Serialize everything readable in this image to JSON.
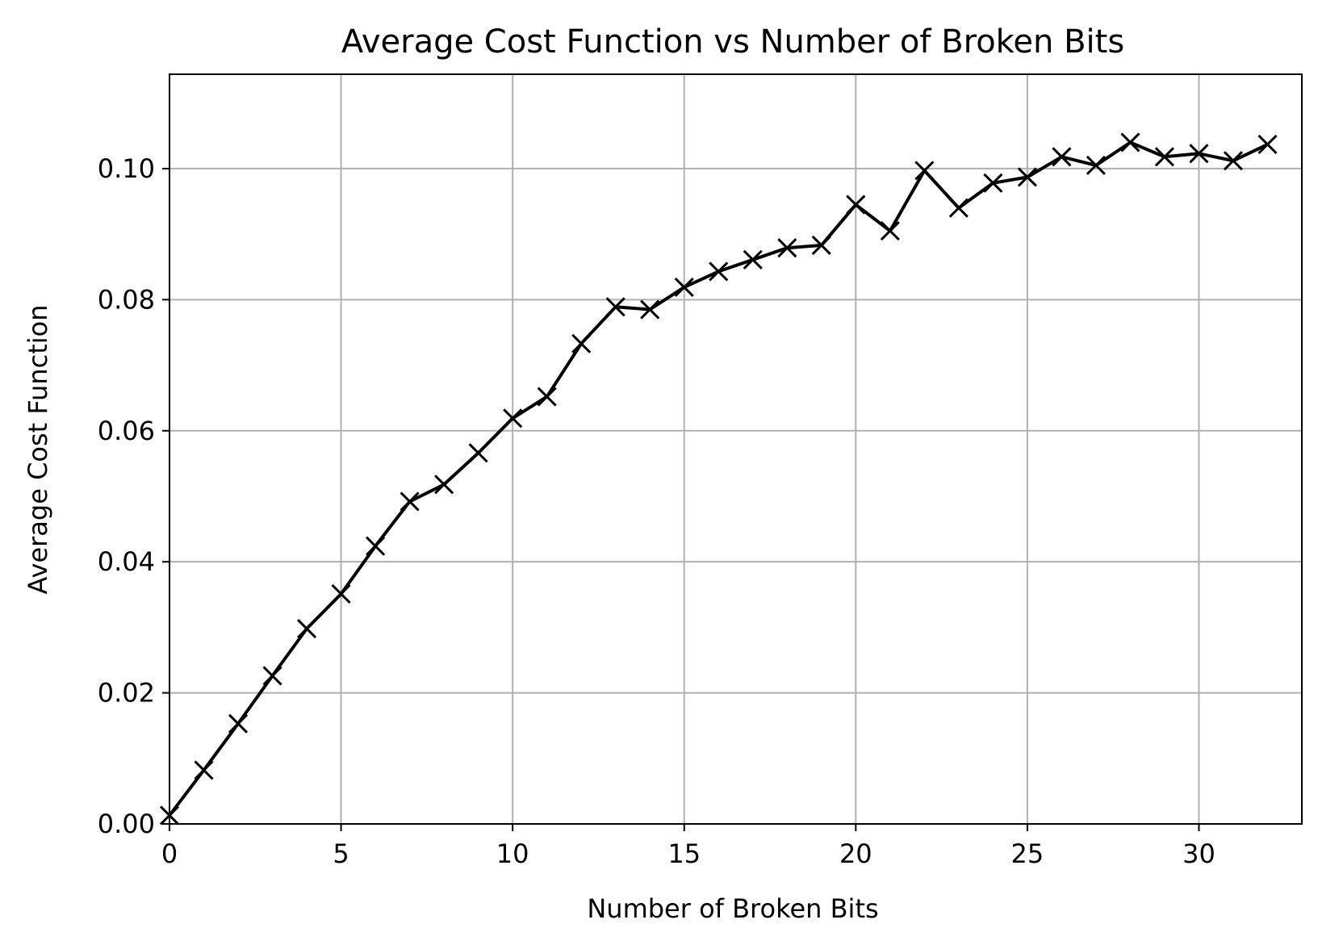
{
  "chart_data": {
    "type": "line",
    "title": "Average Cost Function vs Number of Broken Bits",
    "xlabel": "Number of Broken Bits",
    "ylabel": "Average Cost Function",
    "xlim": [
      0,
      33
    ],
    "ylim": [
      0,
      0.1144
    ],
    "grid": true,
    "x_ticks": [
      0,
      5,
      10,
      15,
      20,
      25,
      30
    ],
    "x_tick_labels": [
      "0",
      "5",
      "10",
      "15",
      "20",
      "25",
      "30"
    ],
    "y_ticks": [
      0,
      0.02,
      0.04,
      0.06,
      0.08,
      0.1
    ],
    "y_tick_labels": [
      "0.00",
      "0.02",
      "0.04",
      "0.06",
      "0.08",
      "0.10"
    ],
    "line_color": "#000000",
    "grid_color": "#b0b0b0",
    "marker": "x",
    "series": [
      {
        "x": [
          0,
          1,
          2,
          3,
          4,
          5,
          6,
          7,
          8,
          9,
          10,
          11,
          12,
          13,
          14,
          15,
          16,
          17,
          18,
          19,
          20,
          21,
          22,
          23,
          24,
          25,
          26,
          27,
          28,
          29,
          30,
          31,
          32
        ],
        "values": [
          0.0013,
          0.0082,
          0.0153,
          0.0226,
          0.0298,
          0.0351,
          0.0424,
          0.0492,
          0.0518,
          0.0566,
          0.0619,
          0.0652,
          0.0733,
          0.0789,
          0.0785,
          0.0819,
          0.0843,
          0.0861,
          0.0879,
          0.0883,
          0.0945,
          0.0905,
          0.0997,
          0.094,
          0.0978,
          0.0987,
          0.1018,
          0.1005,
          0.104,
          0.1018,
          0.1023,
          0.1012,
          0.1037
        ]
      }
    ]
  }
}
